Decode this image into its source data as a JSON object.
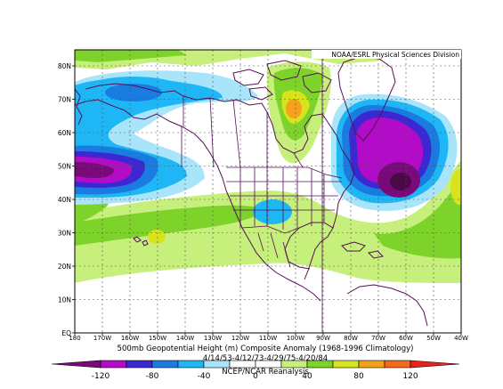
{
  "credit": "NOAA/ESRL Physical Sciences Division",
  "lat_labels": [
    "80N",
    "70N",
    "60N",
    "50N",
    "40N",
    "30N",
    "20N",
    "10N",
    "EQ"
  ],
  "lon_labels": [
    "180",
    "170W",
    "160W",
    "150W",
    "140W",
    "130W",
    "120W",
    "110W",
    "100W",
    "90W",
    "80W",
    "70W",
    "60W",
    "50W",
    "40W"
  ],
  "title_line1": "500mb Geopotential Height (m) Composite Anomaly (1968-1996 Climatology)",
  "title_line2": "4/14/53-4/12/73-4/29/75-4/20/84",
  "source": "NCEP/NCAR Reanalysis",
  "colorbar_labels": [
    "-120",
    "-80",
    "-40",
    "0",
    "40",
    "80",
    "120"
  ],
  "colors": {
    "c1": "#7a0a7a",
    "c2": "#b30cc8",
    "c3": "#3c28d2",
    "c4": "#1a7be0",
    "c5": "#1fb6f5",
    "c6": "#a8e4fa",
    "white": "#ffffff",
    "w1": "#c6ef7c",
    "w2": "#7ed32b",
    "w3": "#d7e31c",
    "w4": "#f4a21c",
    "w5": "#f36b1a",
    "w6": "#ed1e1e",
    "border": "#551155"
  }
}
